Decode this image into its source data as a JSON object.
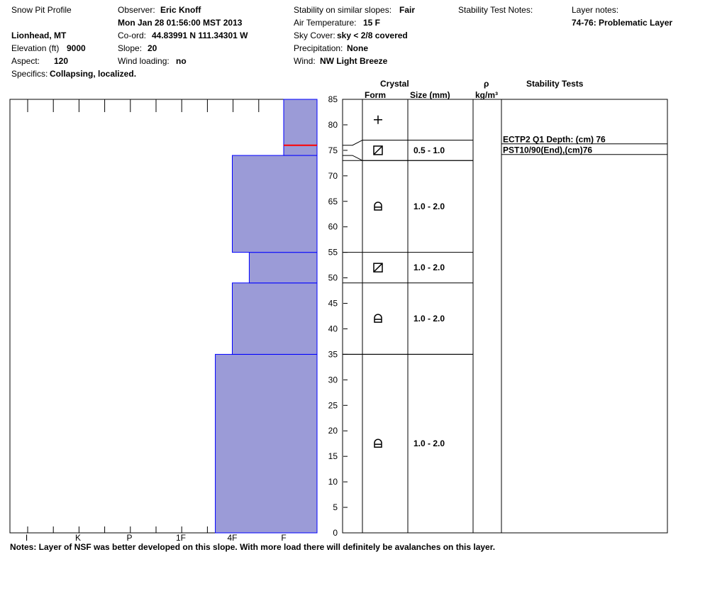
{
  "header": {
    "title": "Snow Pit Profile",
    "location": "Lionhead, MT",
    "elevation_label": "Elevation (ft)",
    "elevation": "9000",
    "aspect_label": "Aspect:",
    "aspect": "120",
    "specifics_label": "Specifics:",
    "specifics": "Collapsing, localized.",
    "observer_label": "Observer:",
    "observer": "Eric Knoff",
    "datetime": "Mon Jan 28 01:56:00 MST 2013",
    "coord_label": "Co-ord:",
    "coord": "44.83991 N 111.34301 W",
    "slope_label": "Slope:",
    "slope": "20",
    "wind_loading_label": "Wind loading:",
    "wind_loading": "no",
    "stability_label": "Stability on similar slopes:",
    "stability": "Fair",
    "air_temp_label": "Air Temperature:",
    "air_temp": "15 F",
    "sky_label": "Sky Cover:",
    "sky": "sky < 2/8 covered",
    "precip_label": "Precipitation:",
    "precip": "None",
    "wind_label": "Wind:",
    "wind": "NW Light Breeze",
    "stability_notes_label": "Stability Test Notes:",
    "layer_notes_label": "Layer notes:",
    "layer_notes": "74-76: Problematic Layer"
  },
  "columns": {
    "crystal": "Crystal",
    "form": "Form",
    "size": "Size (mm)",
    "rho": "ρ",
    "density_unit": "kg/m³",
    "stability_tests": "Stability Tests"
  },
  "notes": "Notes:  Layer of NSF was better developed on this slope.  With more load there will definitely be avalanches on this layer.",
  "chart_data": {
    "type": "bar",
    "title": "",
    "xlabel": "",
    "ylabel": "",
    "ylim": [
      0,
      85
    ],
    "y_ticks": [
      0,
      5,
      10,
      15,
      20,
      25,
      30,
      35,
      40,
      45,
      50,
      55,
      60,
      65,
      70,
      75,
      80,
      85
    ],
    "hardness_scale": [
      "I",
      "K",
      "P",
      "1F",
      "4F",
      "F"
    ],
    "hardness_index": {
      "F": 0,
      "4F": 1,
      "1F": 2,
      "P": 3,
      "K": 4,
      "I": 5
    },
    "hardness_layers": [
      {
        "bottom": 0,
        "top": 35,
        "hardness": 1.33
      },
      {
        "bottom": 35,
        "top": 49,
        "hardness": 1.0
      },
      {
        "bottom": 49,
        "top": 55,
        "hardness": 0.67
      },
      {
        "bottom": 55,
        "top": 74,
        "hardness": 1.0
      },
      {
        "bottom": 74,
        "top": 85,
        "hardness": 0.0
      }
    ],
    "marker_depth": 76,
    "grid": false,
    "layers": [
      {
        "bottom": 35,
        "top": 49,
        "form": "faceted-rounded",
        "size": "1.0 - 2.0"
      },
      {
        "bottom": 49,
        "top": 55,
        "form": "faceted",
        "size": "1.0 - 2.0"
      },
      {
        "bottom": 55,
        "top": 73,
        "form": "faceted-rounded",
        "size": "1.0 - 2.0"
      },
      {
        "bottom": 73,
        "top": 77,
        "form": "faceted",
        "size": "0.5 - 1.0"
      },
      {
        "bottom": 0,
        "top": 35,
        "form": "faceted-rounded",
        "size": "1.0 - 2.0"
      },
      {
        "bottom": 77,
        "top": 85,
        "form": "precipitation",
        "size": ""
      }
    ],
    "stability_tests": [
      {
        "depth": 76,
        "text": "ECTP2 Q1 Depth: (cm) 76"
      },
      {
        "depth": 76,
        "text": "PST10/90(End),(cm)76"
      }
    ]
  },
  "colors": {
    "fill": "#9b9bd7",
    "stroke": "#0000ff",
    "marker": "#ff0000"
  }
}
